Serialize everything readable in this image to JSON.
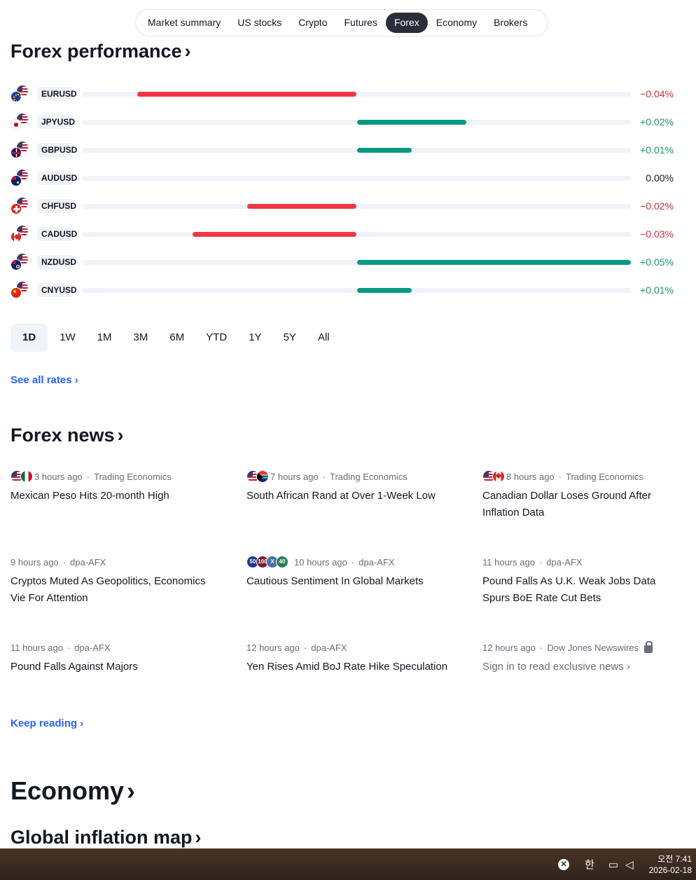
{
  "tabs": [
    "Market summary",
    "US stocks",
    "Crypto",
    "Futures",
    "Forex",
    "Economy",
    "Brokers"
  ],
  "active_tab": "Forex",
  "forex_performance": {
    "title": "Forex performance",
    "scale_max_pct": 0.05,
    "rows": [
      {
        "symbol": "EURUSD",
        "flag": "eu",
        "change_text": "−0.04%",
        "value": -0.04,
        "sign": "neg"
      },
      {
        "symbol": "JPYUSD",
        "flag": "jp",
        "change_text": "+0.02%",
        "value": 0.02,
        "sign": "pos"
      },
      {
        "symbol": "GBPUSD",
        "flag": "gb",
        "change_text": "+0.01%",
        "value": 0.01,
        "sign": "pos"
      },
      {
        "symbol": "AUDUSD",
        "flag": "au",
        "change_text": "0.00%",
        "value": 0.0,
        "sign": "zero"
      },
      {
        "symbol": "CHFUSD",
        "flag": "ch",
        "change_text": "−0.02%",
        "value": -0.02,
        "sign": "neg"
      },
      {
        "symbol": "CADUSD",
        "flag": "ca",
        "change_text": "−0.03%",
        "value": -0.03,
        "sign": "neg"
      },
      {
        "symbol": "NZDUSD",
        "flag": "nz",
        "change_text": "+0.05%",
        "value": 0.05,
        "sign": "pos"
      },
      {
        "symbol": "CNYUSD",
        "flag": "cn",
        "change_text": "+0.01%",
        "value": 0.01,
        "sign": "pos"
      }
    ],
    "periods": [
      "1D",
      "1W",
      "1M",
      "3M",
      "6M",
      "YTD",
      "1Y",
      "5Y",
      "All"
    ],
    "active_period": "1D",
    "see_all": "See all rates ›"
  },
  "forex_news": {
    "title": "Forex news",
    "items": [
      {
        "time": "3 hours ago",
        "source": "Trading Economics",
        "headline": "Mexican Peso Hits 20-month High"
      },
      {
        "time": "7 hours ago",
        "source": "Trading Economics",
        "headline": "South African Rand at Over 1-Week Low"
      },
      {
        "time": "8 hours ago",
        "source": "Trading Economics",
        "headline": "Canadian Dollar Loses Ground After Inflation Data"
      },
      {
        "time": "9 hours ago",
        "source": "dpa-AFX",
        "headline": "Cryptos Muted As Geopolitics, Economics Vie For Attention"
      },
      {
        "time": "10 hours ago",
        "source": "dpa-AFX",
        "headline": "Cautious Sentiment In Global Markets",
        "badges": [
          "50",
          "100",
          "X",
          "40"
        ]
      },
      {
        "time": "11 hours ago",
        "source": "dpa-AFX",
        "headline": "Pound Falls As U.K. Weak Jobs Data Spurs BoE Rate Cut Bets"
      },
      {
        "time": "11 hours ago",
        "source": "dpa-AFX",
        "headline": "Pound Falls Against Majors"
      },
      {
        "time": "12 hours ago",
        "source": "dpa-AFX",
        "headline": "Yen Rises Amid BoJ Rate Hike Speculation"
      },
      {
        "time": "12 hours ago",
        "source": "Dow Jones Newswires",
        "headline": "Sign in to read exclusive news ›"
      }
    ],
    "keep_reading": "Keep reading ›"
  },
  "economy": {
    "title": "Economy",
    "subtitle": "Global inflation map"
  },
  "taskbar": {
    "ime": "한",
    "time": "오전 7:41",
    "date": "2026-02-18"
  }
}
